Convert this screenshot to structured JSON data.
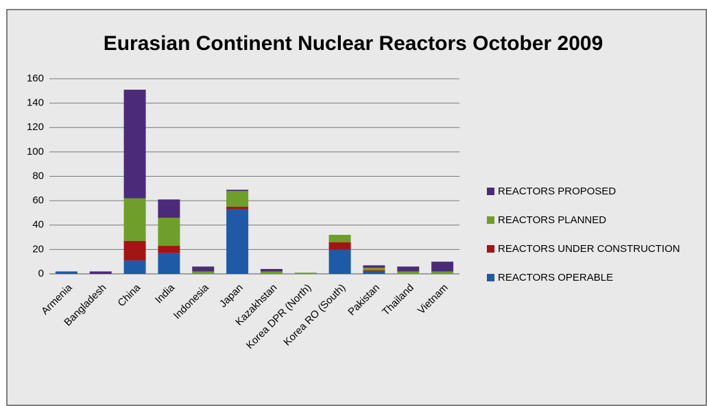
{
  "chart_data": {
    "type": "stacked-bar",
    "title": "Eurasian Continent Nuclear Reactors October 2009",
    "categories": [
      "Armenia",
      "Bangladesh",
      "China",
      "India",
      "Indonesia",
      "Japan",
      "Kazakhstan",
      "Korea DPR (North)",
      "Korea RO (South)",
      "Pakistan",
      "Thailand",
      "Vietnam"
    ],
    "series": [
      {
        "name": "REACTORS OPERABLE",
        "color": "#1f5aa6",
        "values": [
          2,
          0,
          11,
          17,
          0,
          53,
          0,
          0,
          20,
          2,
          0,
          0
        ]
      },
      {
        "name": "REACTORS UNDER CONSTRUCTION",
        "color": "#a31515",
        "values": [
          0,
          0,
          16,
          6,
          0,
          2,
          0,
          0,
          6,
          1,
          0,
          0
        ]
      },
      {
        "name": "REACTORS PLANNED",
        "color": "#6f9e2b",
        "values": [
          0,
          0,
          35,
          23,
          2,
          13,
          2,
          1,
          6,
          2,
          2,
          2
        ]
      },
      {
        "name": "REACTORS PROPOSED",
        "color": "#4b2a7a",
        "values": [
          0,
          2,
          89,
          15,
          4,
          1,
          2,
          0,
          0,
          2,
          4,
          8
        ]
      }
    ],
    "ylim": [
      0,
      160
    ],
    "yticks": [
      0,
      20,
      40,
      60,
      80,
      100,
      120,
      140,
      160
    ],
    "grid": true,
    "legend": "right"
  }
}
